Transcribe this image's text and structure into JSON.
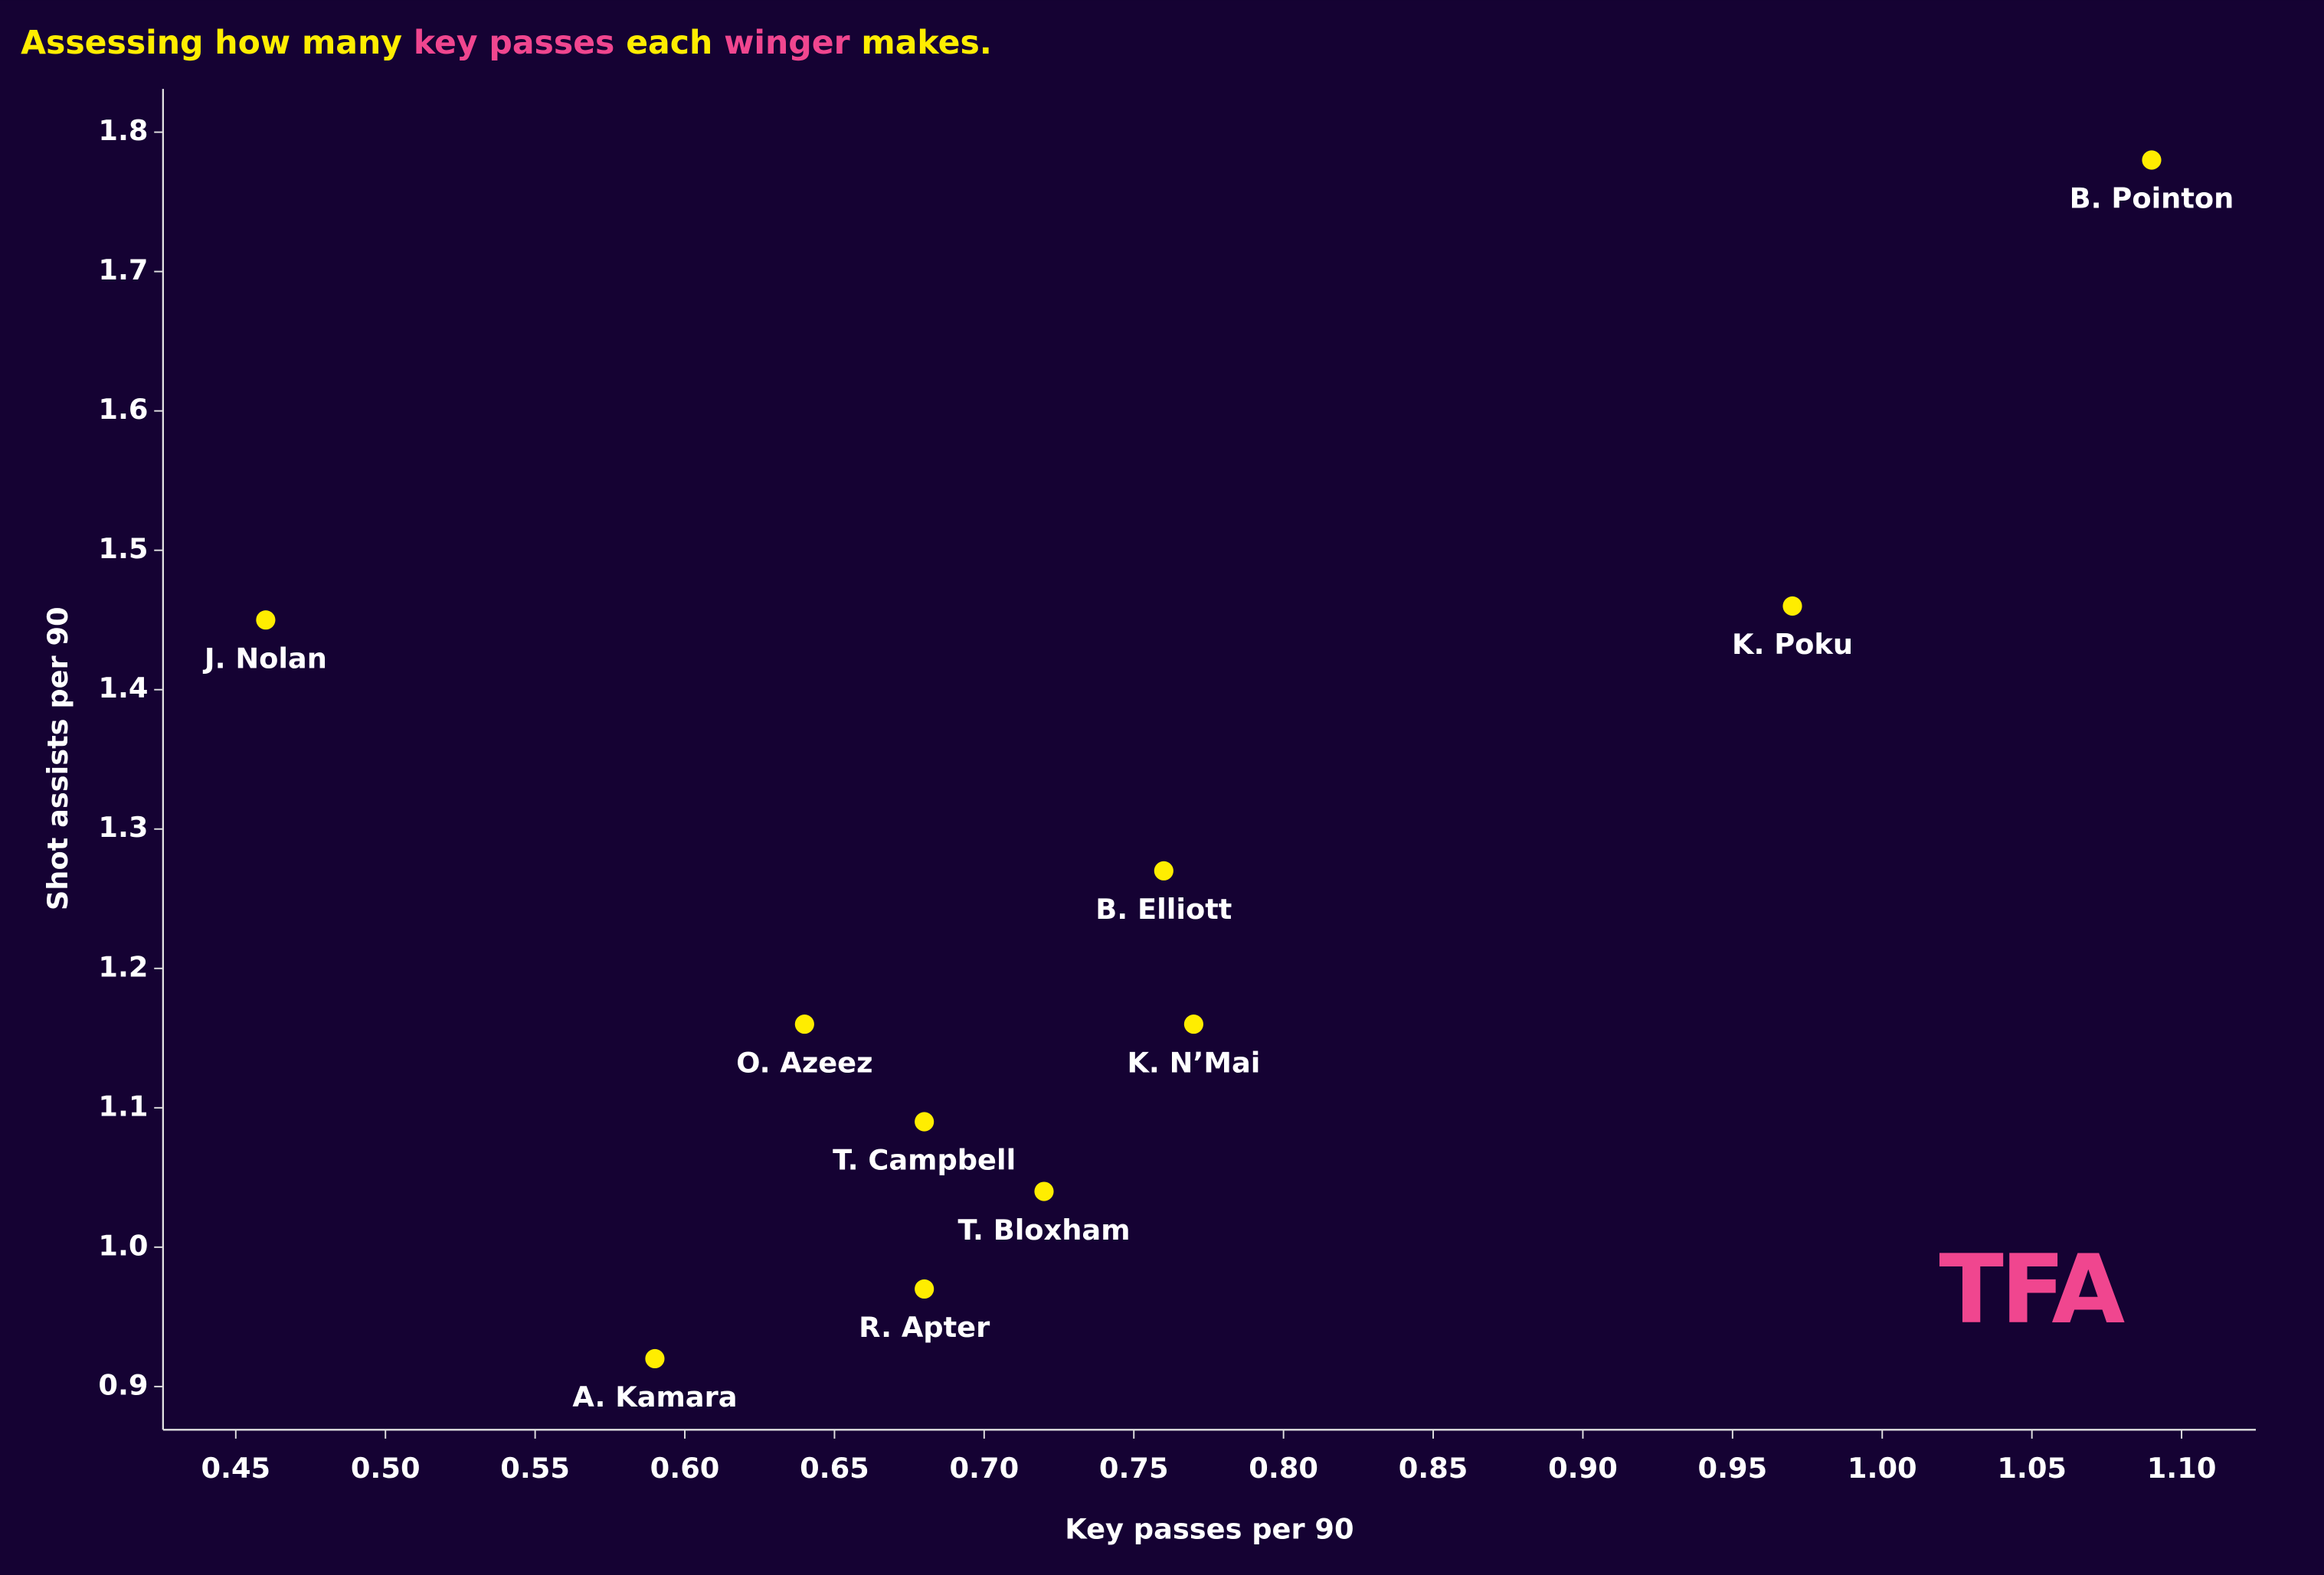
{
  "chart_data": {
    "type": "scatter",
    "title_parts": [
      {
        "text": "Assessing how many",
        "color": "#ffed00"
      },
      {
        "text": "key passes",
        "color": "#f0468f"
      },
      {
        "text": "each",
        "color": "#ffed00"
      },
      {
        "text": "winger",
        "color": "#f0468f"
      },
      {
        "text": "makes.",
        "color": "#ffed00"
      }
    ],
    "x_label": "Key passes per 90",
    "y_label": "Shot assists per 90",
    "logo": "TFA",
    "logo_color": "#f0468f",
    "color": "#ffed00",
    "labels": [
      "B. Pointon",
      "K. Poku",
      "J. Nolan",
      "B. Elliott",
      "O. Azeez",
      "K. N’Mai",
      "T. Campbell",
      "T. Bloxham",
      "R. Apter",
      "A. Kamara"
    ],
    "x": [
      1.09,
      0.97,
      0.46,
      0.76,
      0.64,
      0.77,
      0.68,
      0.72,
      0.68,
      0.59
    ],
    "values": [
      1.78,
      1.46,
      1.45,
      1.27,
      1.16,
      1.16,
      1.09,
      1.04,
      0.97,
      0.92
    ],
    "xlim": [
      0.4257,
      1.1248
    ],
    "ylim": [
      0.869,
      1.831
    ],
    "xticks": [
      0.45,
      {
        "value": 0.5,
        "label": "0.50"
      },
      0.55,
      {
        "value": 0.6,
        "label": "0.60"
      },
      0.65,
      {
        "value": 0.7,
        "label": "0.70"
      },
      0.75,
      {
        "value": 0.8,
        "label": "0.80"
      },
      0.85,
      {
        "value": 0.9,
        "label": "0.90"
      },
      0.95,
      {
        "value": 1,
        "label": "1.00"
      },
      1.05,
      {
        "value": 1.1,
        "label": "1.10"
      }
    ],
    "yticks": [
      0.9,
      {
        "value": 1,
        "label": "1.0"
      },
      1.1,
      1.2,
      1.3,
      1.4,
      1.5,
      1.6,
      1.7,
      1.8
    ]
  }
}
